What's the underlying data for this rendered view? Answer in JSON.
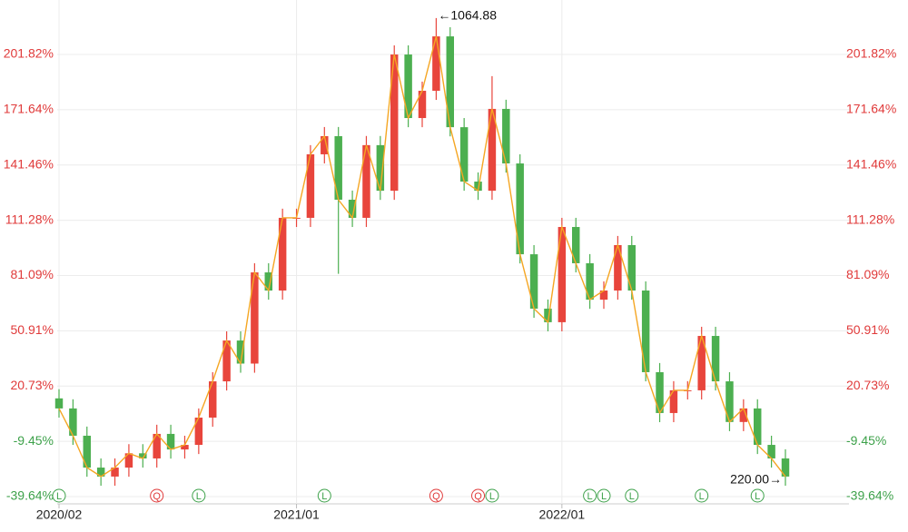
{
  "chart_data": {
    "type": "candlestick",
    "categories": [
      "2020/02",
      null,
      null,
      null,
      null,
      null,
      null,
      null,
      null,
      null,
      null,
      null,
      null,
      null,
      null,
      null,
      null,
      "2021/01",
      null,
      null,
      null,
      null,
      null,
      null,
      null,
      null,
      null,
      null,
      null,
      null,
      null,
      null,
      null,
      null,
      null,
      null,
      "2022/01",
      null,
      null,
      null,
      null,
      null,
      null,
      null,
      null,
      null,
      null,
      null,
      null,
      null,
      null,
      null,
      null
    ],
    "open": [
      14,
      8.5,
      -6.4,
      -23.8,
      -28.7,
      -23.8,
      -16,
      -18.8,
      -5.4,
      -13.9,
      -11.4,
      3.5,
      23.3,
      45.6,
      33,
      82.8,
      72.9,
      112.6,
      112.6,
      147.3,
      157.2,
      122.5,
      112.6,
      152.3,
      127.4,
      201.8,
      167.1,
      182,
      211.7,
      162.1,
      132.4,
      127.4,
      172.1,
      142.3,
      92.7,
      63,
      55.6,
      107.6,
      87.8,
      67.9,
      72.9,
      97.7,
      72.9,
      28.3,
      6,
      18.4,
      18.4,
      48.1,
      23.3,
      1.1,
      8.5,
      -11.4,
      -18.8
    ],
    "high": [
      19,
      13.5,
      -1.4,
      -18.8,
      -18.8,
      -11,
      -11,
      -0.4,
      -0.4,
      -6.4,
      8.5,
      28.3,
      50.6,
      50.6,
      87.8,
      87.8,
      117.6,
      117.6,
      152.3,
      162.2,
      162.2,
      127.5,
      157.3,
      157.3,
      206.8,
      206.8,
      187,
      221.7,
      216.7,
      167.1,
      137.4,
      190,
      177.1,
      147.3,
      97.7,
      68,
      112.6,
      112.6,
      92.8,
      77.9,
      102.7,
      102.7,
      77.9,
      33.3,
      23.4,
      23.4,
      53.1,
      53.1,
      28.3,
      13.5,
      13.5,
      -6.4,
      -13.8
    ],
    "low": [
      3.5,
      -11.4,
      -28.8,
      -33.7,
      -33.7,
      -28.8,
      -23.8,
      -23.8,
      -18.9,
      -18.9,
      -16.4,
      -1.5,
      18.3,
      28,
      28,
      67.9,
      67.9,
      107.6,
      107.6,
      142.3,
      82,
      107.6,
      107.6,
      122.4,
      122.4,
      162.1,
      162.1,
      177,
      157.1,
      127.4,
      122.4,
      122.4,
      137.3,
      87.7,
      58,
      50.6,
      50.6,
      82.8,
      62.9,
      62.9,
      67.9,
      67.9,
      23.3,
      1,
      1,
      13.4,
      13.4,
      18.3,
      -3.9,
      -3.9,
      -16.4,
      -23.8,
      -33.7
    ],
    "close": [
      8.5,
      -6.4,
      -23.8,
      -28.7,
      -23.8,
      -16,
      -18.8,
      -5.4,
      -13.9,
      -11.4,
      3.5,
      23.3,
      45.6,
      33,
      82.8,
      72.9,
      112.6,
      112.6,
      147.3,
      157.2,
      122.5,
      112.6,
      152.3,
      127.4,
      201.8,
      167.1,
      182,
      211.7,
      162.1,
      132.4,
      127.4,
      172.1,
      142.3,
      92.7,
      63,
      55.6,
      107.6,
      87.8,
      67.9,
      72.9,
      97.7,
      72.9,
      28.3,
      6,
      18.4,
      18.4,
      48.1,
      23.3,
      1.1,
      8.5,
      -11.4,
      -18.8,
      -28.7
    ],
    "up_color": "#e8453c",
    "down_color": "#4caf50",
    "line_color": "#f5a623",
    "ylim": [
      -43.61,
      231.57
    ],
    "yticks": [
      {
        "value": -39.64,
        "label": "-39.64%"
      },
      {
        "value": -9.45,
        "label": "-9.45%"
      },
      {
        "value": 20.73,
        "label": "20.73%"
      },
      {
        "value": 50.91,
        "label": "50.91%"
      },
      {
        "value": 81.09,
        "label": "81.09%"
      },
      {
        "value": 111.28,
        "label": "111.28%"
      },
      {
        "value": 141.46,
        "label": "141.46%"
      },
      {
        "value": 171.64,
        "label": "171.64%"
      },
      {
        "value": 201.82,
        "label": "201.82%"
      }
    ],
    "grid": true,
    "annotations": [
      {
        "at": 27,
        "text": "←1064.88"
      },
      {
        "at": 52,
        "text": "220.00→"
      }
    ],
    "events": [
      {
        "at": 0,
        "label": "L"
      },
      {
        "at": 7,
        "label": "Q"
      },
      {
        "at": 10,
        "label": "L"
      },
      {
        "at": 19,
        "label": "L"
      },
      {
        "at": 27,
        "label": "Q"
      },
      {
        "at": 30,
        "label": "Q"
      },
      {
        "at": 31,
        "label": "L"
      },
      {
        "at": 38,
        "label": "L"
      },
      {
        "at": 39,
        "label": "L"
      },
      {
        "at": 41,
        "label": "L"
      },
      {
        "at": 46,
        "label": "L"
      },
      {
        "at": 50,
        "label": "L"
      }
    ]
  }
}
